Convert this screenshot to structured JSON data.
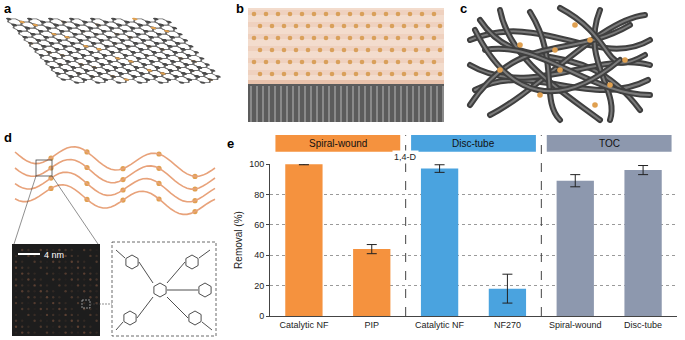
{
  "panel_labels": [
    "a",
    "b",
    "c",
    "d"
  ],
  "panel_d": {
    "scale_bar": "4 nm"
  },
  "chart_data": {
    "panel_label": "e",
    "type": "bar",
    "y_label": "Removal (%)",
    "categories": [
      "Catalytic NF",
      "PIP",
      "Catalytic NF",
      "NF270",
      "Spiral-wound",
      "Disc-tube"
    ],
    "values": [
      99.8,
      44,
      97,
      18,
      89,
      96
    ],
    "errors": [
      0.3,
      3,
      2.5,
      9.5,
      4,
      3
    ],
    "colors": [
      "#f5923e",
      "#f5923e",
      "#4aa3df",
      "#4aa3df",
      "#8d98ae",
      "#8d98ae"
    ],
    "groups": [
      "Spiral-wound",
      "Spiral-wound",
      "Disc-tube",
      "Disc-tube",
      "TOC",
      "TOC"
    ],
    "group_headers": [
      {
        "label": "Spiral-wound",
        "color": "#f5923e"
      },
      {
        "label": "Disc-tube",
        "color": "#4aa3df"
      },
      {
        "label": "TOC",
        "color": "#8d98ae"
      }
    ],
    "annotations": [
      "1,4-D"
    ],
    "ylim": [
      0,
      100
    ],
    "yticks": [
      0,
      20,
      40,
      60,
      80,
      100
    ],
    "grid": true
  }
}
